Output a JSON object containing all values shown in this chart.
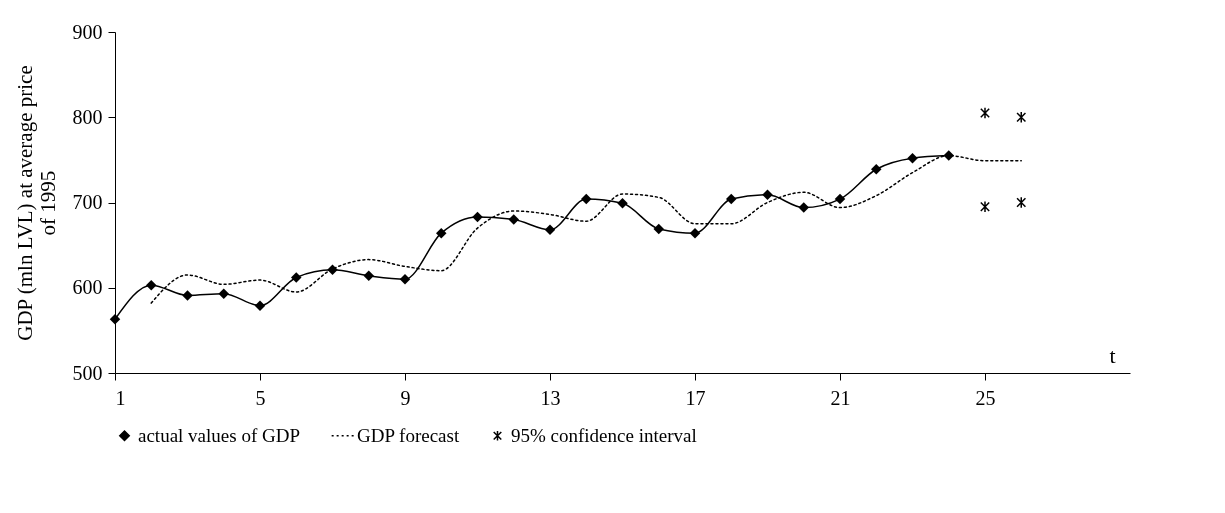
{
  "chart_data": {
    "type": "line",
    "xlabel": "t",
    "ylabel": "GDP (mln LVL) at average price of 1995",
    "xlim": [
      1,
      29
    ],
    "xticks": [
      1,
      5,
      9,
      13,
      17,
      21,
      25
    ],
    "ylim": [
      500,
      900
    ],
    "yticks": [
      500,
      600,
      700,
      800,
      900
    ],
    "grid": false,
    "legend": "bottom",
    "series": [
      {
        "name": "actual values of GDP",
        "color": "#000000",
        "marker": "diamond",
        "line_style": "solid",
        "x": [
          1,
          2,
          3,
          4,
          5,
          6,
          7,
          8,
          9,
          10,
          11,
          12,
          13,
          14,
          15,
          16,
          17,
          18,
          19,
          20,
          21,
          22,
          23,
          24
        ],
        "values": [
          563,
          603,
          591,
          593,
          579,
          612,
          621,
          614,
          610,
          664,
          683,
          680,
          668,
          704,
          699,
          669,
          664,
          704,
          709,
          694,
          704,
          739,
          752,
          755
        ]
      },
      {
        "name": "GDP forecast",
        "color": "#000000",
        "marker": "none",
        "line_style": "dotted",
        "x": [
          2,
          3,
          4,
          5,
          6,
          7,
          8,
          9,
          10,
          11,
          12,
          13,
          14,
          15,
          16,
          17,
          18,
          19,
          20,
          21,
          22,
          23,
          24,
          25,
          26
        ],
        "values": [
          582,
          615,
          604,
          609,
          595,
          622,
          633,
          625,
          620,
          670,
          690,
          686,
          678,
          710,
          706,
          675,
          675,
          700,
          712,
          694,
          708,
          735,
          755,
          749,
          749
        ]
      },
      {
        "name": "95% confidence interval",
        "type": "scatter",
        "color": "#000000",
        "marker": "cross",
        "x": [
          25,
          25,
          26,
          26
        ],
        "values": [
          805,
          695,
          800,
          700
        ]
      }
    ]
  }
}
